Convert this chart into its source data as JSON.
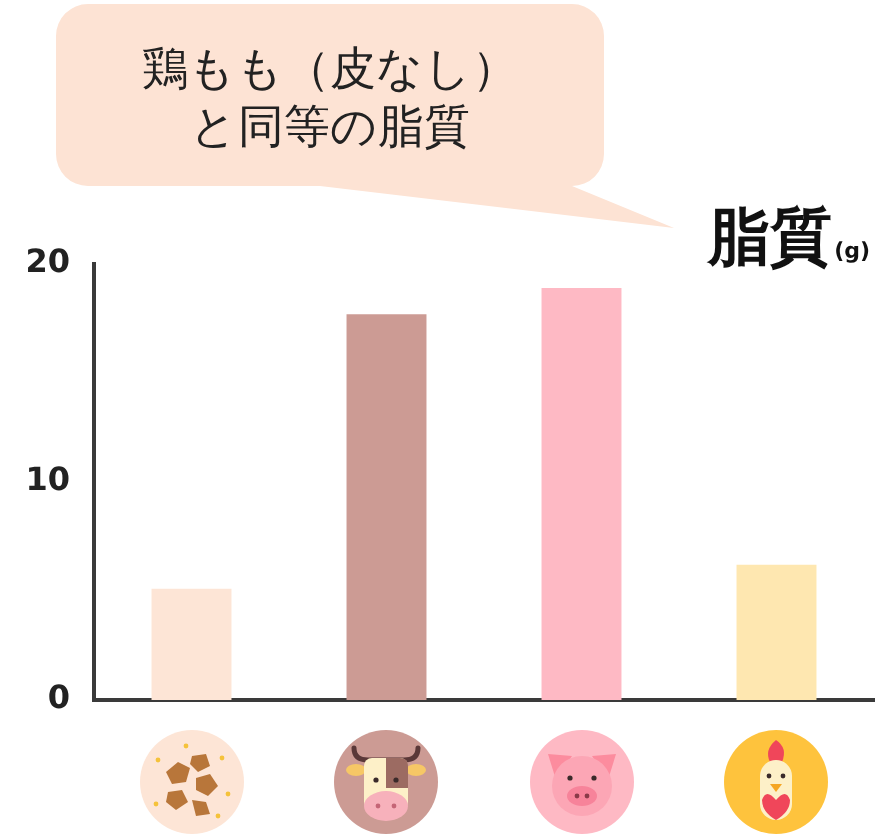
{
  "chart_data": {
    "type": "bar",
    "ylabel": "脂質$_{(g)}$",
    "annotations": [
      "鶏もも（皮なし）と同等の脂質"
    ],
    "categories": [
      null,
      null,
      null,
      null
    ],
    "values": [
      5.1,
      17.7,
      18.9,
      6.2
    ],
    "colors": [
      "#fde5d6",
      "#cc9b94",
      "#feb9c4",
      "#fee7b0"
    ],
    "ylim": [
      0,
      20
    ],
    "yticks": [
      0,
      10,
      20
    ],
    "grid": false,
    "legend": false
  }
}
